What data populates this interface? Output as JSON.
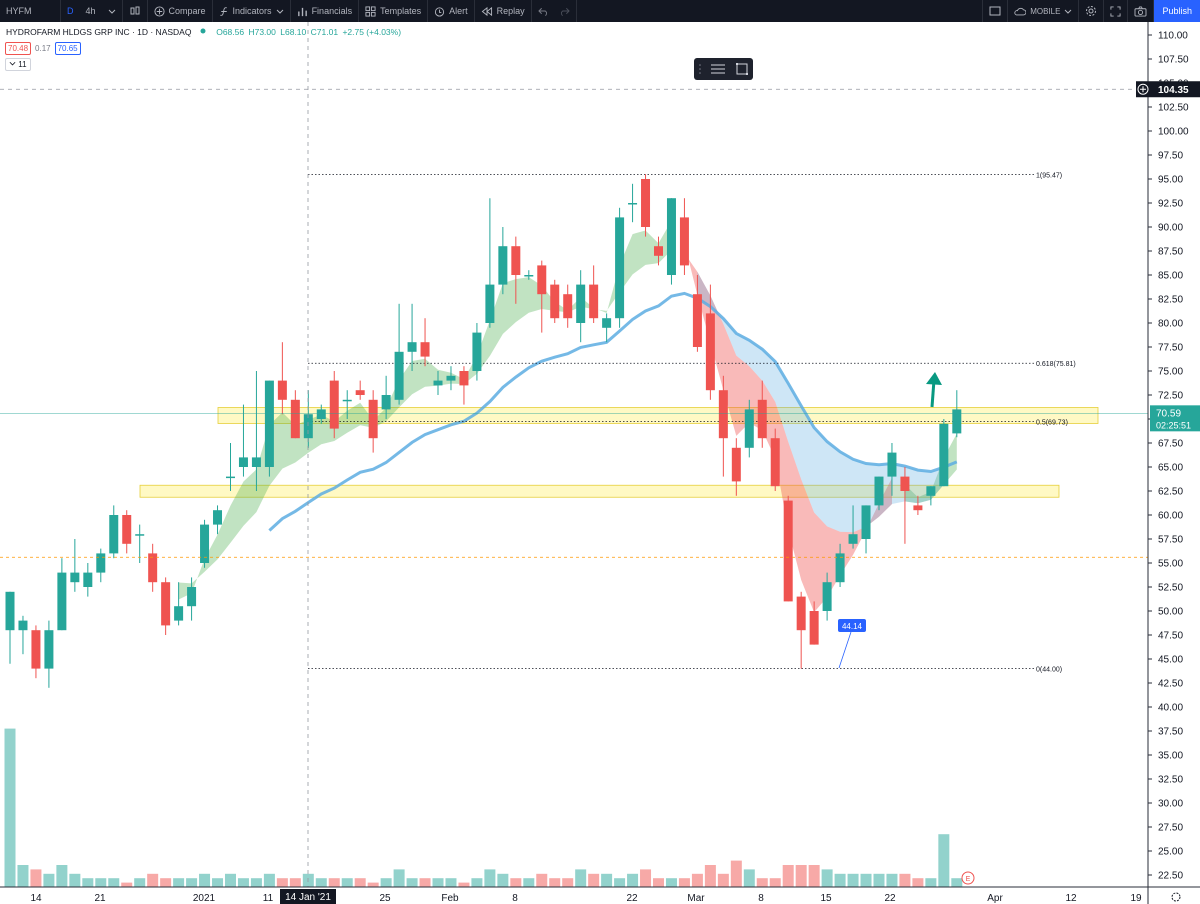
{
  "topbar": {
    "symbol": "HYFM",
    "interval_d": "D",
    "interval_4h": "4h",
    "compare": "Compare",
    "indicators": "Indicators",
    "financials": "Financials",
    "templates": "Templates",
    "alert": "Alert",
    "replay": "Replay",
    "layout_name": "MOBILE",
    "publish": "Publish"
  },
  "legend": {
    "title": "HYDROFARM HLDGS GRP INC · 1D · NASDAQ",
    "open": "O68.56",
    "high": "H73.00",
    "low": "L68.10",
    "close": "C71.01",
    "change": "+2.75 (+4.03%)",
    "bid": "70.48",
    "spread": "0.17",
    "ask": "70.65",
    "volume_toggle": "11"
  },
  "price_axis": {
    "crosshair_price": "104.35",
    "last_price": "70.59",
    "countdown": "02:25:51"
  },
  "time_axis": {
    "crosshair_date": "14 Jan '21"
  },
  "annotations": {
    "callout": "44.14",
    "earnings_marker": "E"
  },
  "fib_labels": [
    {
      "text": "1(95.47)",
      "price": 95.47
    },
    {
      "text": "0.618(75.81)",
      "price": 75.81
    },
    {
      "text": "0.5(69.73)",
      "price": 69.73
    },
    {
      "text": "0(44.00)",
      "price": 44.0
    }
  ],
  "colors": {
    "up": "#26a69a",
    "down": "#ef5350",
    "ma_blue": "#5dade2",
    "zone": "#fff59d",
    "accent": "#2962ff",
    "arrow": "#089981"
  },
  "chart_data": {
    "type": "candlestick",
    "symbol": "HYFM",
    "timeframe": "1D",
    "y_ticks": [
      110,
      107.5,
      105,
      102.5,
      100,
      97.5,
      95,
      92.5,
      90,
      87.5,
      85,
      82.5,
      80,
      77.5,
      75,
      72.5,
      70,
      67.5,
      65,
      62.5,
      60,
      57.5,
      55,
      52.5,
      50,
      47.5,
      45,
      42.5,
      40,
      37.5,
      35,
      32.5,
      30,
      27.5,
      25,
      22.5
    ],
    "x_ticks": [
      {
        "label": "14",
        "x": 36
      },
      {
        "label": "21",
        "x": 100
      },
      {
        "label": "2021",
        "x": 204
      },
      {
        "label": "11",
        "x": 268
      },
      {
        "label": "25",
        "x": 385
      },
      {
        "label": "Feb",
        "x": 450
      },
      {
        "label": "8",
        "x": 515
      },
      {
        "label": "22",
        "x": 632
      },
      {
        "label": "Mar",
        "x": 696
      },
      {
        "label": "8",
        "x": 761
      },
      {
        "label": "15",
        "x": 826
      },
      {
        "label": "22",
        "x": 890
      },
      {
        "label": "Apr",
        "x": 995
      },
      {
        "label": "12",
        "x": 1071
      },
      {
        "label": "19",
        "x": 1136
      }
    ],
    "candles": [
      {
        "o": 48.0,
        "h": 52.0,
        "l": 44.5,
        "c": 52.0
      },
      {
        "o": 48.0,
        "h": 49.5,
        "l": 45.5,
        "c": 49.0
      },
      {
        "o": 48.0,
        "h": 48.5,
        "l": 43.0,
        "c": 44.0
      },
      {
        "o": 44.0,
        "h": 49.0,
        "l": 42.0,
        "c": 48.0
      },
      {
        "o": 48.0,
        "h": 55.5,
        "l": 48.0,
        "c": 54.0
      },
      {
        "o": 53.0,
        "h": 57.5,
        "l": 52.0,
        "c": 54.0
      },
      {
        "o": 52.5,
        "h": 55.0,
        "l": 51.5,
        "c": 54.0
      },
      {
        "o": 54.0,
        "h": 56.5,
        "l": 53.0,
        "c": 56.0
      },
      {
        "o": 56.0,
        "h": 61.0,
        "l": 55.5,
        "c": 60.0
      },
      {
        "o": 60.0,
        "h": 60.5,
        "l": 56.0,
        "c": 57.0
      },
      {
        "o": 58.0,
        "h": 59.0,
        "l": 55.0,
        "c": 58.0
      },
      {
        "o": 56.0,
        "h": 57.0,
        "l": 52.0,
        "c": 53.0
      },
      {
        "o": 53.0,
        "h": 53.5,
        "l": 47.5,
        "c": 48.5
      },
      {
        "o": 49.0,
        "h": 53.0,
        "l": 48.5,
        "c": 50.5
      },
      {
        "o": 50.5,
        "h": 53.5,
        "l": 49.0,
        "c": 52.5
      },
      {
        "o": 55.0,
        "h": 59.5,
        "l": 54.5,
        "c": 59.0
      },
      {
        "o": 59.0,
        "h": 61.0,
        "l": 58.0,
        "c": 60.5
      },
      {
        "o": 64.0,
        "h": 67.5,
        "l": 62.5,
        "c": 64.0
      },
      {
        "o": 65.0,
        "h": 71.5,
        "l": 64.0,
        "c": 66.0
      },
      {
        "o": 65.0,
        "h": 75.0,
        "l": 62.5,
        "c": 66.0
      },
      {
        "o": 65.0,
        "h": 74.0,
        "l": 64.0,
        "c": 74.0
      },
      {
        "o": 74.0,
        "h": 78.0,
        "l": 70.5,
        "c": 72.0
      },
      {
        "o": 72.0,
        "h": 73.0,
        "l": 68.0,
        "c": 68.0
      },
      {
        "o": 68.0,
        "h": 73.0,
        "l": 67.0,
        "c": 70.5
      },
      {
        "o": 70.0,
        "h": 71.5,
        "l": 69.5,
        "c": 71.0
      },
      {
        "o": 74.0,
        "h": 75.0,
        "l": 68.0,
        "c": 69.0
      },
      {
        "o": 72.0,
        "h": 73.0,
        "l": 70.0,
        "c": 72.0
      },
      {
        "o": 73.0,
        "h": 74.0,
        "l": 72.0,
        "c": 72.5
      },
      {
        "o": 72.0,
        "h": 73.0,
        "l": 66.5,
        "c": 68.0
      },
      {
        "o": 71.0,
        "h": 74.5,
        "l": 70.0,
        "c": 72.5
      },
      {
        "o": 72.0,
        "h": 82.0,
        "l": 71.5,
        "c": 77.0
      },
      {
        "o": 77.0,
        "h": 82.0,
        "l": 75.0,
        "c": 78.0
      },
      {
        "o": 78.0,
        "h": 80.5,
        "l": 75.5,
        "c": 76.5
      },
      {
        "o": 73.5,
        "h": 75.0,
        "l": 72.5,
        "c": 74.0
      },
      {
        "o": 74.0,
        "h": 75.5,
        "l": 73.0,
        "c": 74.5
      },
      {
        "o": 75.0,
        "h": 75.5,
        "l": 71.5,
        "c": 73.5
      },
      {
        "o": 75.0,
        "h": 80.0,
        "l": 74.0,
        "c": 79.0
      },
      {
        "o": 80.0,
        "h": 93.0,
        "l": 79.5,
        "c": 84.0
      },
      {
        "o": 84.0,
        "h": 90.0,
        "l": 83.0,
        "c": 88.0
      },
      {
        "o": 88.0,
        "h": 89.0,
        "l": 82.0,
        "c": 85.0
      },
      {
        "o": 85.0,
        "h": 85.5,
        "l": 84.5,
        "c": 85.0
      },
      {
        "o": 86.0,
        "h": 86.5,
        "l": 79.0,
        "c": 83.0
      },
      {
        "o": 84.0,
        "h": 84.5,
        "l": 80.0,
        "c": 80.5
      },
      {
        "o": 83.0,
        "h": 84.0,
        "l": 79.5,
        "c": 80.5
      },
      {
        "o": 80.0,
        "h": 85.5,
        "l": 78.0,
        "c": 84.0
      },
      {
        "o": 84.0,
        "h": 86.0,
        "l": 80.0,
        "c": 80.5
      },
      {
        "o": 79.5,
        "h": 81.0,
        "l": 78.0,
        "c": 80.5
      },
      {
        "o": 80.5,
        "h": 92.0,
        "l": 79.5,
        "c": 91.0
      },
      {
        "o": 92.5,
        "h": 94.5,
        "l": 90.5,
        "c": 92.5
      },
      {
        "o": 95.0,
        "h": 95.5,
        "l": 89.0,
        "c": 90.0
      },
      {
        "o": 88.0,
        "h": 89.0,
        "l": 86.0,
        "c": 87.0
      },
      {
        "o": 85.0,
        "h": 93.0,
        "l": 84.0,
        "c": 93.0
      },
      {
        "o": 91.0,
        "h": 93.0,
        "l": 85.0,
        "c": 86.0
      },
      {
        "o": 83.0,
        "h": 85.0,
        "l": 77.0,
        "c": 77.5
      },
      {
        "o": 81.0,
        "h": 84.0,
        "l": 72.0,
        "c": 73.0
      },
      {
        "o": 73.0,
        "h": 74.5,
        "l": 64.0,
        "c": 68.0
      },
      {
        "o": 67.0,
        "h": 68.0,
        "l": 62.0,
        "c": 63.5
      },
      {
        "o": 67.0,
        "h": 72.0,
        "l": 66.0,
        "c": 71.0
      },
      {
        "o": 72.0,
        "h": 74.0,
        "l": 67.0,
        "c": 68.0
      },
      {
        "o": 68.0,
        "h": 69.0,
        "l": 62.5,
        "c": 63.0
      },
      {
        "o": 61.5,
        "h": 62.0,
        "l": 51.0,
        "c": 51.0
      },
      {
        "o": 51.5,
        "h": 52.0,
        "l": 44.0,
        "c": 48.0
      },
      {
        "o": 50.0,
        "h": 51.0,
        "l": 46.5,
        "c": 46.5
      },
      {
        "o": 50.0,
        "h": 54.0,
        "l": 49.0,
        "c": 53.0
      },
      {
        "o": 53.0,
        "h": 57.0,
        "l": 52.5,
        "c": 56.0
      },
      {
        "o": 57.0,
        "h": 61.0,
        "l": 56.5,
        "c": 58.0
      },
      {
        "o": 57.5,
        "h": 61.0,
        "l": 56.0,
        "c": 61.0
      },
      {
        "o": 61.0,
        "h": 64.0,
        "l": 60.5,
        "c": 64.0
      },
      {
        "o": 64.0,
        "h": 67.5,
        "l": 62.0,
        "c": 66.5
      },
      {
        "o": 64.0,
        "h": 65.0,
        "l": 57.0,
        "c": 62.5
      },
      {
        "o": 61.0,
        "h": 62.0,
        "l": 60.0,
        "c": 60.5
      },
      {
        "o": 62.0,
        "h": 63.0,
        "l": 61.0,
        "c": 63.0
      },
      {
        "o": 63.0,
        "h": 70.0,
        "l": 63.0,
        "c": 69.5
      },
      {
        "o": 68.5,
        "h": 73.0,
        "l": 68.1,
        "c": 71.0
      }
    ],
    "volumes": [
      36,
      5,
      4,
      3,
      5,
      3,
      2,
      2,
      2,
      1,
      2,
      3,
      2,
      2,
      2,
      3,
      2,
      3,
      2,
      2,
      3,
      2,
      2,
      3,
      2,
      2,
      2,
      2,
      1,
      2,
      4,
      2,
      2,
      2,
      2,
      1,
      2,
      4,
      3,
      2,
      2,
      3,
      2,
      2,
      4,
      3,
      3,
      2,
      3,
      4,
      2,
      2,
      2,
      3,
      5,
      3,
      6,
      4,
      2,
      2,
      5,
      5,
      5,
      4,
      3,
      3,
      3,
      3,
      3,
      3,
      2,
      2,
      12,
      2
    ]
  }
}
